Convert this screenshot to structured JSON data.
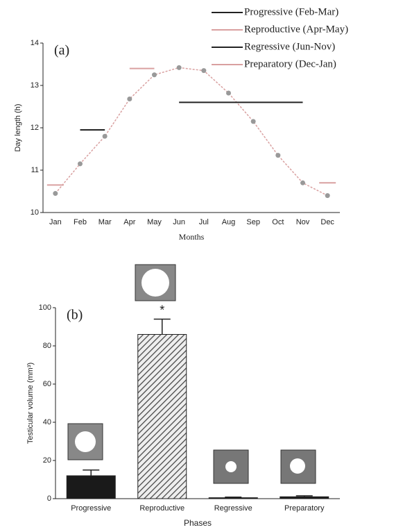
{
  "chart_data": [
    {
      "type": "line",
      "title": "(a)",
      "y_label": "Day length (h)",
      "x_label": "Months",
      "categories": [
        "Jan",
        "Feb",
        "Mar",
        "Apr",
        "May",
        "Jun",
        "Jul",
        "Aug",
        "Sep",
        "Oct",
        "Nov",
        "Dec"
      ],
      "values": [
        10.45,
        11.15,
        11.8,
        12.68,
        13.25,
        13.42,
        13.35,
        12.82,
        12.15,
        11.35,
        10.7,
        10.4
      ],
      "color": "#d9a0a0",
      "marker_color": "#999999",
      "series": [
        {
          "name": "Progressive (Feb-Mar)",
          "color": "#222222",
          "values": [
            null,
            11.95,
            11.95,
            null,
            null,
            null,
            null,
            null,
            null,
            null,
            null,
            null
          ]
        },
        {
          "name": "Reproductive (Apr-May)",
          "color": "#d9a0a0",
          "values": [
            null,
            null,
            null,
            13.4,
            13.4,
            null,
            null,
            null,
            null,
            null,
            null,
            null
          ]
        },
        {
          "name": "Regressive (Jun-Nov)",
          "color": "#222222",
          "values": [
            null,
            null,
            null,
            null,
            null,
            12.6,
            12.6,
            12.6,
            12.6,
            12.6,
            12.6,
            null
          ]
        },
        {
          "name": "Preparatory (Dec-Jan)",
          "color": "#d9a0a0",
          "values": [
            10.65,
            null,
            null,
            null,
            null,
            null,
            null,
            null,
            null,
            null,
            null,
            10.7
          ]
        }
      ],
      "ylim": [
        10,
        14
      ],
      "yticks": [
        10,
        11,
        12,
        13,
        14
      ]
    },
    {
      "type": "bar",
      "title": "(b)",
      "y_label": "Testicular volume (mm³)",
      "x_label": "Phases",
      "categories": [
        "Progressive",
        "Reproductive",
        "Regressive",
        "Preparatory"
      ],
      "values": [
        12,
        86,
        0.5,
        1
      ],
      "errors": [
        3,
        8,
        0.3,
        0.5
      ],
      "colors": [
        "#1a1a1a",
        "#555555",
        "#1a1a1a",
        "#1a1a1a"
      ],
      "hatched": [
        false,
        true,
        false,
        false
      ],
      "annotation": "*",
      "ylim": [
        0,
        100
      ],
      "yticks": [
        0,
        20,
        40,
        60,
        80,
        100
      ]
    }
  ]
}
